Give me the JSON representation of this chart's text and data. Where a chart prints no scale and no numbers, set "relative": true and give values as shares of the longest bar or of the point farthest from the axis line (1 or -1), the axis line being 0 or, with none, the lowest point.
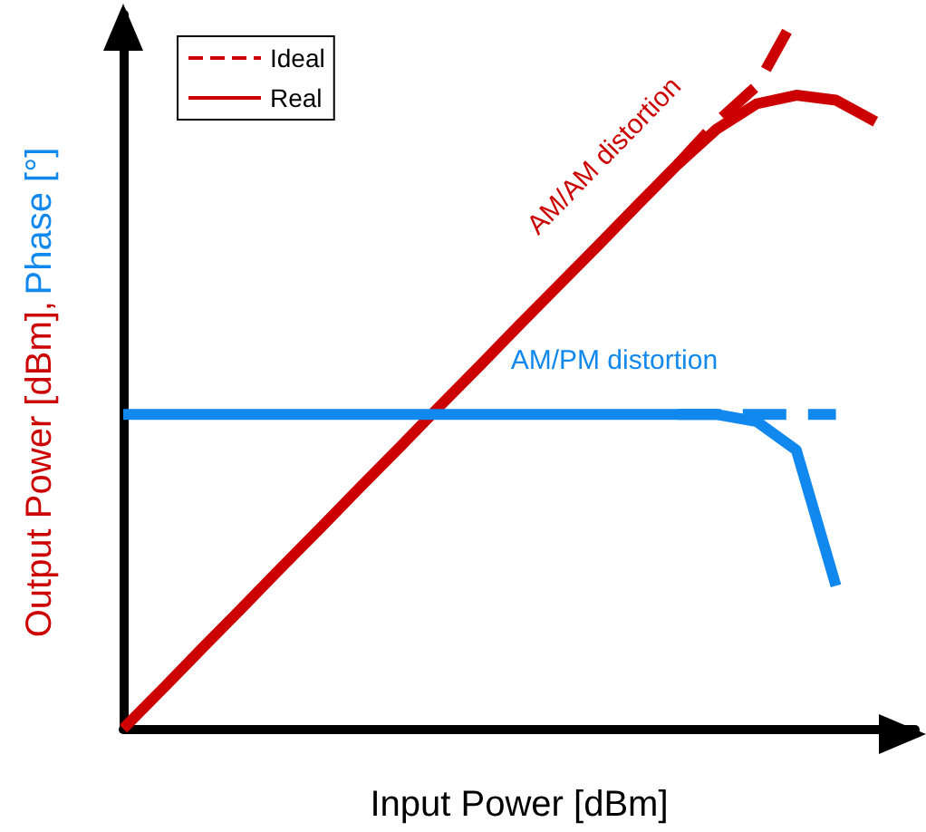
{
  "chart_data": {
    "type": "line",
    "relative": true,
    "xlabel": "Input Power [dBm]",
    "ylabel": "Output Power [dBm],",
    "y2label": "Phase [°]",
    "tick_labels": false,
    "grid": false,
    "legend": "top left",
    "marker": "none",
    "annotations": [
      "AM/AM distortion",
      "AM/PM distortion"
    ],
    "categories": [
      null,
      null,
      null,
      null,
      null,
      null,
      null,
      null,
      null,
      null,
      null,
      null,
      null,
      null,
      null,
      null,
      null,
      null,
      null,
      null,
      null
    ],
    "series": [
      {
        "name": "Ideal",
        "color": "#cc0000",
        "line_style": "dashed",
        "values": [
          null,
          null,
          null,
          null,
          null,
          null,
          null,
          null,
          null,
          null,
          null,
          null,
          null,
          null,
          0.79,
          0.85,
          0.9,
          1.0,
          null,
          null,
          null
        ]
      },
      {
        "name": "Real",
        "color": "#cc0000",
        "line_style": "solid",
        "values": [
          0,
          0.056,
          0.113,
          0.169,
          0.226,
          0.282,
          0.339,
          0.395,
          0.452,
          0.508,
          0.565,
          0.621,
          0.677,
          0.734,
          0.79,
          0.84,
          0.875,
          0.887,
          0.88,
          0.85,
          null
        ]
      },
      {
        "color": "#1188ee",
        "line_style": "dashed",
        "values": [
          null,
          null,
          null,
          null,
          null,
          null,
          null,
          null,
          null,
          null,
          null,
          null,
          null,
          null,
          0.44,
          0.44,
          0.44,
          0.44,
          0.44,
          null,
          null
        ]
      },
      {
        "color": "#1188ee",
        "line_style": "solid",
        "values": [
          0.44,
          0.44,
          0.44,
          0.44,
          0.44,
          0.44,
          0.44,
          0.44,
          0.44,
          0.44,
          0.44,
          0.44,
          0.44,
          0.44,
          0.44,
          0.44,
          0.43,
          0.39,
          0.2,
          null,
          null
        ]
      }
    ]
  }
}
